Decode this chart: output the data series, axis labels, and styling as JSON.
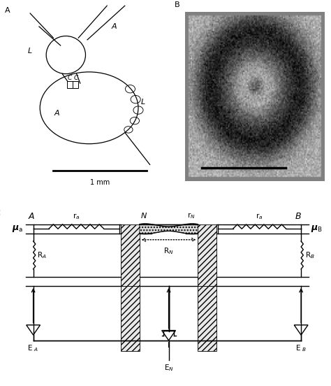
{
  "bg_color": "#ffffff",
  "line_color": "#000000",
  "panel_A_label": "A",
  "panel_B_label": "B",
  "panel_C_label": "C",
  "scale_bar_label": "1 mm"
}
